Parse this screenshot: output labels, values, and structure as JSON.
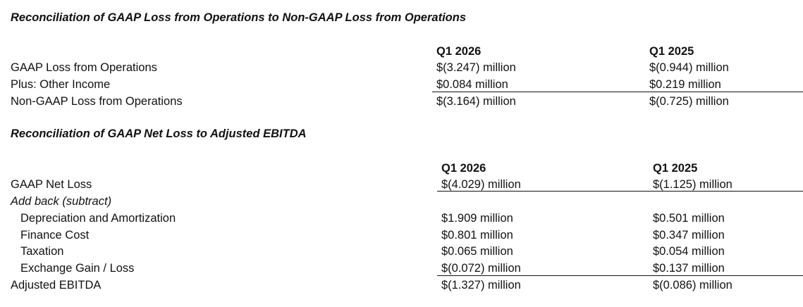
{
  "section1": {
    "title": "Reconciliation of GAAP Loss from Operations to Non-GAAP Loss from Operations",
    "col1_header": "Q1 2026",
    "col2_header": "Q1 2025",
    "rows": [
      {
        "label": "GAAP Loss from Operations",
        "q1_2026": "$(3.247) million",
        "q1_2025": "$(0.944) million"
      },
      {
        "label": "Plus: Other Income",
        "q1_2026": "$0.084 million",
        "q1_2025": "$0.219 million"
      },
      {
        "label": "Non-GAAP Loss from Operations",
        "q1_2026": "$(3.164) million",
        "q1_2025": "$(0.725) million"
      }
    ]
  },
  "section2": {
    "title": "Reconciliation of GAAP Net Loss to Adjusted EBITDA",
    "col1_header": "Q1 2026",
    "col2_header": "Q1 2025",
    "net_loss": {
      "label": "GAAP Net Loss",
      "q1_2026": "$(4.029) million",
      "q1_2025": "$(1.125) million"
    },
    "addback_label": "Add back (subtract)",
    "addbacks": [
      {
        "label": "Depreciation and Amortization",
        "q1_2026": "$1.909 million",
        "q1_2025": "$0.501 million"
      },
      {
        "label": "Finance Cost",
        "q1_2026": "$0.801 million",
        "q1_2025": "$0.347 million"
      },
      {
        "label": "Taxation",
        "q1_2026": "$0.065 million",
        "q1_2025": "$0.054 million"
      },
      {
        "label": "Exchange Gain / Loss",
        "q1_2026": "$(0.072) million",
        "q1_2025": "$0.137 million"
      }
    ],
    "total": {
      "label": "Adjusted EBITDA",
      "q1_2026": "$(1.327) million",
      "q1_2025": "$(0.086) million"
    }
  }
}
